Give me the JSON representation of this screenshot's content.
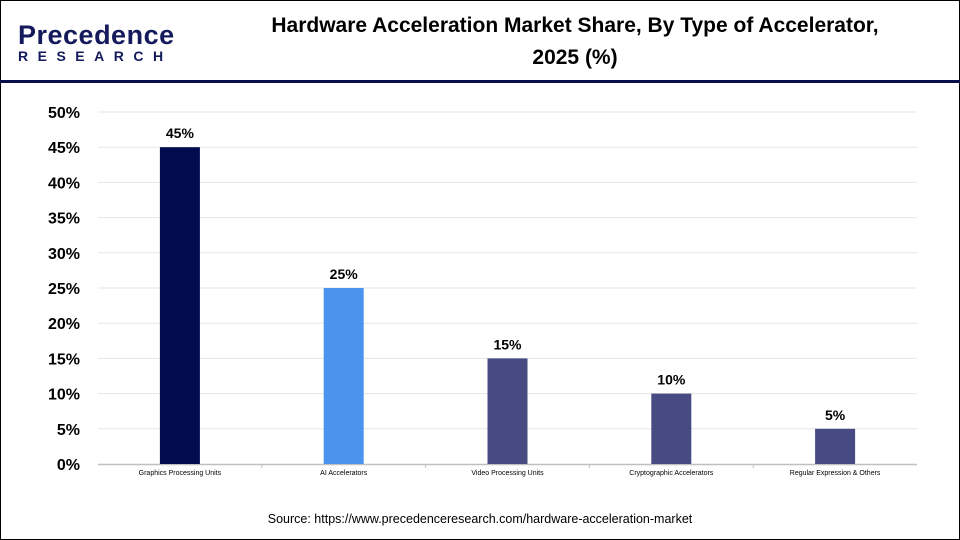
{
  "logo": {
    "line1": "Precedence",
    "line2": "RESEARCH"
  },
  "header": {
    "title_line1": "Hardware Acceleration Market Share, By Type of Accelerator,",
    "title_line2": "2025 (%)"
  },
  "source": "Source: https://www.precedenceresearch.com/hardware-acceleration-market",
  "chart_data": {
    "type": "bar",
    "title": "Hardware Acceleration Market Share, By Type of Accelerator, 2025 (%)",
    "categories": [
      "Graphics Processing Units",
      "AI Accelerators",
      "Video Processing Units",
      "Cryptographic Accelerators",
      "Regular Expression & Others"
    ],
    "values": [
      45,
      25,
      15,
      10,
      5
    ],
    "data_labels": [
      "45%",
      "25%",
      "15%",
      "10%",
      "5%"
    ],
    "colors": [
      "#030b4f",
      "#4a94ee",
      "#474b82",
      "#474b82",
      "#474b82"
    ],
    "ylim": [
      0,
      50
    ],
    "yticks": [
      "0%",
      "5%",
      "10%",
      "15%",
      "20%",
      "25%",
      "30%",
      "35%",
      "40%",
      "45%",
      "50%"
    ],
    "xlabel": "",
    "ylabel": "",
    "grid": true,
    "legend": "none"
  }
}
